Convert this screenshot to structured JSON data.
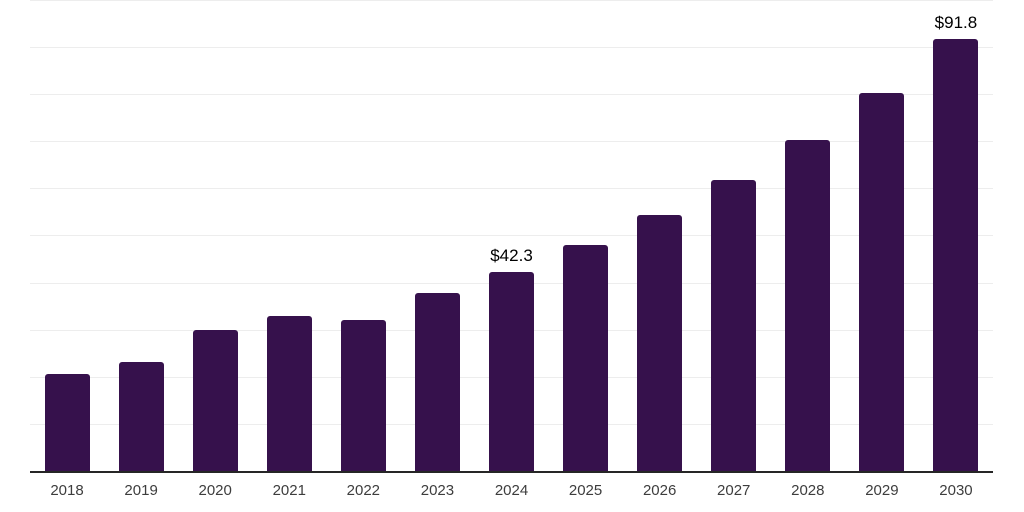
{
  "chart_data": {
    "type": "bar",
    "title": "",
    "xlabel": "",
    "ylabel": "",
    "categories": [
      "2018",
      "2019",
      "2020",
      "2021",
      "2022",
      "2023",
      "2024",
      "2025",
      "2026",
      "2027",
      "2028",
      "2029",
      "2030"
    ],
    "values": [
      20.5,
      23.2,
      30.0,
      33.0,
      32.0,
      37.9,
      42.3,
      47.9,
      54.3,
      61.7,
      70.2,
      80.2,
      91.8
    ],
    "data_labels": [
      null,
      null,
      null,
      null,
      null,
      null,
      "$42.3",
      null,
      null,
      null,
      null,
      null,
      "$91.8"
    ],
    "ylim": [
      0,
      100
    ],
    "gridline_step": 10,
    "grid": true,
    "legend": false,
    "colors": {
      "bar": "#36114c",
      "grid": "#ededed",
      "axis": "#262626",
      "tick_label": "#3d3d3d",
      "data_label": "#000000",
      "background": "#ffffff"
    }
  }
}
